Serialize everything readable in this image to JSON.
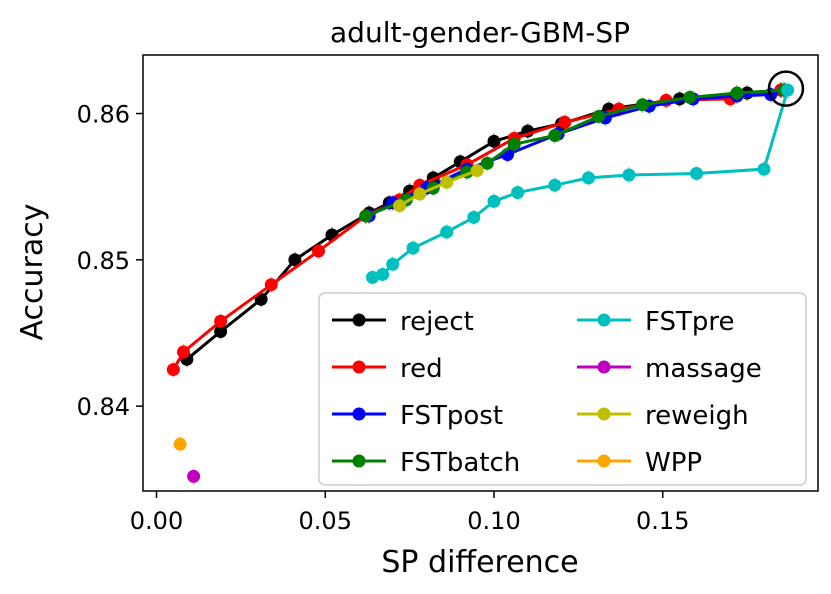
{
  "chart_data": {
    "type": "line",
    "title": "adult-gender-GBM-SP",
    "xlabel": "SP difference",
    "ylabel": "Accuracy",
    "xlim": [
      -0.004,
      0.196
    ],
    "ylim": [
      0.8342,
      0.864
    ],
    "xticks": [
      0.0,
      0.05,
      0.1,
      0.15
    ],
    "xtick_labels": [
      "0.00",
      "0.05",
      "0.10",
      "0.15"
    ],
    "yticks": [
      0.84,
      0.85,
      0.86
    ],
    "ytick_labels": [
      "0.84",
      "0.85",
      "0.86"
    ],
    "grid": false,
    "legend_position": "lower-right",
    "series": [
      {
        "name": "reject",
        "color": "#000000",
        "x": [
          0.009,
          0.019,
          0.031,
          0.041,
          0.052,
          0.063,
          0.069,
          0.075,
          0.082,
          0.09,
          0.1,
          0.11,
          0.12,
          0.134,
          0.155,
          0.175,
          0.185
        ],
        "y": [
          0.8432,
          0.8451,
          0.8473,
          0.85,
          0.8517,
          0.8532,
          0.8539,
          0.8547,
          0.8556,
          0.8567,
          0.8581,
          0.8588,
          0.8593,
          0.8603,
          0.861,
          0.8614,
          0.8616
        ]
      },
      {
        "name": "red",
        "color": "#ff0000",
        "x": [
          0.005,
          0.008,
          0.019,
          0.034,
          0.048,
          0.062,
          0.072,
          0.078,
          0.092,
          0.106,
          0.121,
          0.137,
          0.151,
          0.17,
          0.185
        ],
        "y": [
          0.8425,
          0.8437,
          0.8458,
          0.8483,
          0.8506,
          0.853,
          0.8541,
          0.8551,
          0.8565,
          0.8583,
          0.8594,
          0.8603,
          0.8609,
          0.861,
          0.8616
        ]
      },
      {
        "name": "FSTpost",
        "color": "#0000ff",
        "x": [
          0.063,
          0.07,
          0.08,
          0.092,
          0.104,
          0.119,
          0.133,
          0.146,
          0.159,
          0.172,
          0.182,
          0.186
        ],
        "y": [
          0.853,
          0.8539,
          0.8549,
          0.8562,
          0.8572,
          0.8586,
          0.8597,
          0.8605,
          0.861,
          0.8612,
          0.8613,
          0.8616
        ]
      },
      {
        "name": "FSTbatch",
        "color": "#008000",
        "x": [
          0.062,
          0.074,
          0.082,
          0.092,
          0.098,
          0.106,
          0.118,
          0.131,
          0.144,
          0.158,
          0.172,
          0.186
        ],
        "y": [
          0.853,
          0.8541,
          0.8549,
          0.856,
          0.8566,
          0.8579,
          0.8585,
          0.8598,
          0.8606,
          0.8611,
          0.8614,
          0.8616
        ]
      },
      {
        "name": "FSTpre",
        "color": "#00bfbf",
        "x": [
          0.064,
          0.067,
          0.07,
          0.076,
          0.086,
          0.094,
          0.1,
          0.107,
          0.118,
          0.128,
          0.14,
          0.16,
          0.18,
          0.187
        ],
        "y": [
          0.8488,
          0.849,
          0.8497,
          0.8508,
          0.8519,
          0.8529,
          0.854,
          0.8546,
          0.8551,
          0.8556,
          0.8558,
          0.8559,
          0.8562,
          0.8616
        ]
      },
      {
        "name": "massage",
        "color": "#bf00bf",
        "x": [
          0.011
        ],
        "y": [
          0.8352
        ]
      },
      {
        "name": "reweigh",
        "color": "#bfbf00",
        "x": [
          0.072,
          0.078,
          0.086,
          0.095
        ],
        "y": [
          0.8537,
          0.8545,
          0.8553,
          0.8561
        ]
      },
      {
        "name": "WPP",
        "color": "#ffa500",
        "x": [
          0.007
        ],
        "y": [
          0.8374
        ]
      }
    ],
    "annotation": "circle at best-accuracy point",
    "highlight_point": {
      "x": 0.1865,
      "y": 0.8617
    }
  }
}
